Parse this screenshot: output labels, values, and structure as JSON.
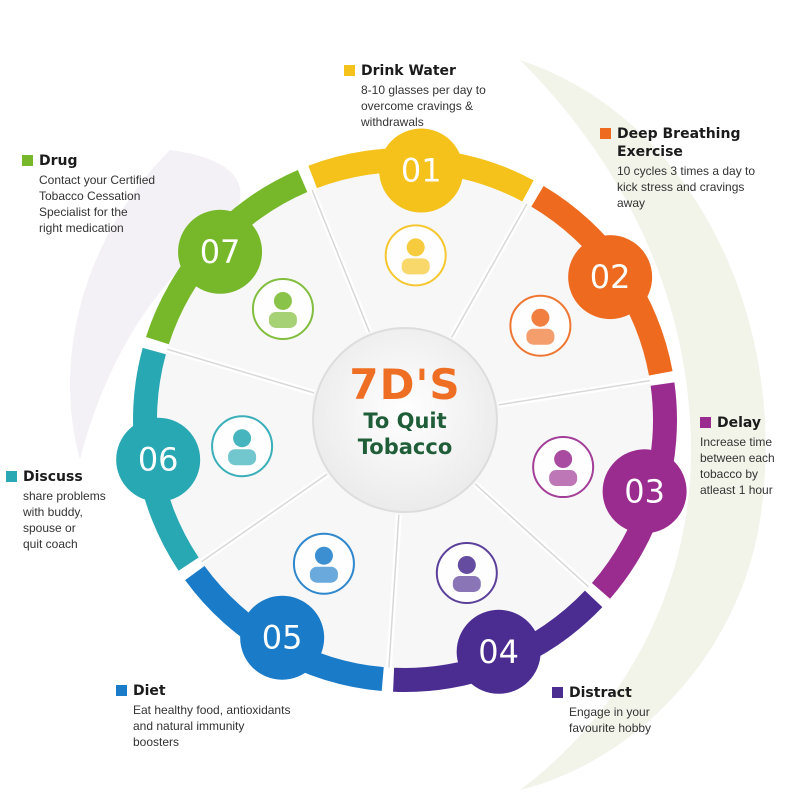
{
  "title": {
    "main": "7D'S",
    "line1": "To Quit",
    "line2": "Tobacco"
  },
  "steps": [
    {
      "number": "01",
      "name": "Drink Water",
      "color": "#f5c21b",
      "lines": [
        "8-10 glasses per day to",
        "overcome cravings &",
        "withdrawals"
      ],
      "icon": "drinking-person-icon"
    },
    {
      "number": "02",
      "name": "Deep Breathing Exercise",
      "name_lines": [
        "Deep Breathing",
        "Exercise"
      ],
      "color": "#ee6a1f",
      "lines": [
        "10 cycles 3 times a day to",
        "kick stress and cravings",
        "away"
      ],
      "icon": "meditation-icon"
    },
    {
      "number": "03",
      "name": "Delay",
      "color": "#9a2c8f",
      "lines": [
        "Increase time",
        "between each",
        "tobacco by",
        "atleast 1 hour"
      ],
      "icon": "alarm-clock-icon"
    },
    {
      "number": "04",
      "name": "Distract",
      "color": "#4b2d91",
      "lines": [
        "Engage in your",
        "favourite hobby"
      ],
      "icon": "head-gears-icon"
    },
    {
      "number": "05",
      "name": "Diet",
      "color": "#1a7bc9",
      "lines": [
        "Eat healthy food, antioxidants",
        "and natural immunity",
        "boosters"
      ],
      "icon": "salad-bowl-icon"
    },
    {
      "number": "06",
      "name": "Discuss",
      "color": "#27a8b3",
      "lines": [
        "share problems",
        "with buddy,",
        "spouse or",
        "quit coach"
      ],
      "icon": "two-people-talking-icon"
    },
    {
      "number": "07",
      "name": "Drug",
      "color": "#76b82a",
      "lines": [
        "Contact your Certified",
        "Tobacco Cessation",
        "Specialist for the",
        "right medication"
      ],
      "icon": "medicines-icon"
    }
  ]
}
